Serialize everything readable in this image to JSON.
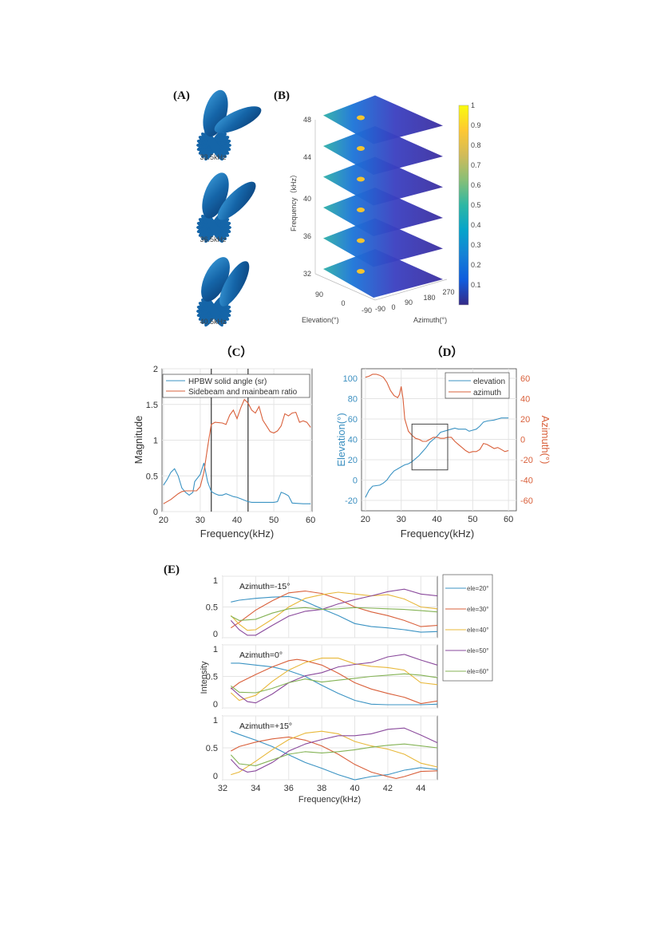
{
  "panels": {
    "A": {
      "label": "(A)",
      "freq_labels": [
        "33.5kHz",
        "36.5kHz",
        "40.5kHz"
      ]
    },
    "B": {
      "label": "(B)",
      "zlabel": "Frequency（kHz）",
      "z_ticks": [
        "32",
        "36",
        "40",
        "44",
        "48"
      ],
      "elevation_label": "Elevation(°)",
      "elevation_ticks": [
        "90",
        "0",
        "-90"
      ],
      "azimuth_label": "Azimuth(°)",
      "azimuth_ticks": [
        "-90",
        "0",
        "90",
        "180",
        "270"
      ],
      "colorbar_ticks": [
        "1",
        "0.9",
        "0.8",
        "0.7",
        "0.6",
        "0.5",
        "0.4",
        "0.3",
        "0.2",
        "0.1"
      ],
      "colormap": [
        "#352a87",
        "#0f5cdd",
        "#1481d6",
        "#06a4ca",
        "#2eb7a4",
        "#87bf77",
        "#d1bb59",
        "#fec832",
        "#f9fb0e"
      ]
    },
    "C": {
      "label": "（C）"
    },
    "D": {
      "label": "（D）"
    },
    "E": {
      "label": "(E)"
    }
  },
  "chart_data": [
    {
      "id": "C",
      "type": "line",
      "xlabel": "Frequency(kHz)",
      "ylabel": "Magnitude",
      "xlim": [
        20,
        60
      ],
      "ylim": [
        0,
        2
      ],
      "xticks": [
        20,
        30,
        40,
        50,
        60
      ],
      "yticks": [
        0,
        0.5,
        1,
        1.5,
        2
      ],
      "grid": true,
      "legend": "top",
      "vertical_lines": [
        33,
        43
      ],
      "series": [
        {
          "name": "HPBW solid angle (sr)",
          "color": "#3b93c3",
          "x": [
            20,
            21,
            22,
            23,
            24,
            25,
            26,
            27,
            28,
            28.5,
            30,
            31,
            32,
            33,
            34,
            35,
            36,
            37,
            38,
            39,
            40,
            41,
            42,
            43,
            44,
            46,
            48,
            50,
            51,
            52,
            53,
            54,
            55,
            58,
            60
          ],
          "y": [
            0.37,
            0.45,
            0.55,
            0.6,
            0.5,
            0.33,
            0.27,
            0.23,
            0.27,
            0.42,
            0.52,
            0.68,
            0.42,
            0.28,
            0.25,
            0.23,
            0.23,
            0.25,
            0.23,
            0.21,
            0.2,
            0.18,
            0.16,
            0.14,
            0.13,
            0.13,
            0.13,
            0.13,
            0.14,
            0.27,
            0.25,
            0.22,
            0.12,
            0.11,
            0.11
          ]
        },
        {
          "name": "Sidebeam and mainbeam ratio",
          "color": "#d9603b",
          "x": [
            20,
            22,
            24,
            25,
            26,
            28,
            29,
            30,
            31,
            32,
            33,
            34,
            36,
            37,
            38,
            39,
            40,
            41,
            42,
            43,
            44,
            45,
            46,
            47,
            48,
            49,
            50,
            51,
            52,
            53,
            54,
            55,
            56,
            57,
            58,
            59,
            60
          ],
          "y": [
            0.11,
            0.17,
            0.25,
            0.28,
            0.29,
            0.29,
            0.29,
            0.35,
            0.55,
            0.9,
            1.22,
            1.25,
            1.24,
            1.22,
            1.35,
            1.42,
            1.3,
            1.45,
            1.57,
            1.52,
            1.42,
            1.38,
            1.47,
            1.28,
            1.2,
            1.12,
            1.1,
            1.13,
            1.2,
            1.37,
            1.34,
            1.38,
            1.39,
            1.25,
            1.27,
            1.25,
            1.18
          ]
        }
      ]
    },
    {
      "id": "D",
      "type": "line",
      "xlabel": "Frequency(kHz)",
      "ylabel": "Elevation(°)",
      "ylabel_right": "Azimuth(°)",
      "xlim": [
        20,
        60
      ],
      "ylim": [
        -30,
        110
      ],
      "ylim_right": [
        -70,
        70
      ],
      "xticks": [
        20,
        30,
        40,
        50,
        60
      ],
      "yticks": [
        -20,
        0,
        20,
        40,
        60,
        80,
        100
      ],
      "yticks_right": [
        -60,
        -40,
        -20,
        0,
        20,
        40,
        60
      ],
      "grid": true,
      "legend": "top-right",
      "box": {
        "x": [
          33,
          43
        ],
        "elevation": [
          10,
          55
        ]
      },
      "series": [
        {
          "name": "elevation",
          "axis": "left",
          "color": "#3b93c3",
          "x": [
            20,
            21,
            22,
            24,
            25,
            26,
            27,
            28,
            29,
            30,
            31,
            32,
            33,
            34,
            35,
            36,
            37,
            38,
            39,
            40,
            41,
            42,
            43,
            44,
            45,
            46,
            48,
            49,
            50,
            51,
            52,
            53,
            54,
            56,
            57,
            58,
            60
          ],
          "y": [
            -17,
            -10,
            -6,
            -5,
            -3,
            0,
            5,
            9,
            11,
            13,
            15,
            16,
            18,
            21,
            24,
            28,
            32,
            37,
            40,
            43,
            47,
            48,
            49,
            50,
            51,
            50,
            50,
            48,
            49,
            50,
            53,
            57,
            58,
            59,
            60,
            61,
            61
          ]
        },
        {
          "name": "azimuth",
          "axis": "right",
          "color": "#d9603b",
          "x": [
            20,
            21,
            22,
            23,
            24,
            25,
            26,
            27,
            28,
            29,
            29.5,
            30,
            30.5,
            31,
            32,
            33,
            34,
            35,
            36,
            37,
            38,
            39,
            40,
            41,
            42,
            43,
            44,
            45,
            46,
            47,
            48,
            49,
            50,
            51,
            52,
            53,
            54,
            55,
            56,
            57,
            58,
            59,
            60
          ],
          "y": [
            61,
            62,
            64,
            64,
            63,
            61,
            56,
            48,
            43,
            41,
            44,
            52,
            40,
            20,
            8,
            4,
            1,
            0,
            -2,
            -2,
            0,
            2,
            2,
            1,
            1,
            2,
            2,
            -2,
            -5,
            -8,
            -11,
            -13,
            -12,
            -12,
            -10,
            -4,
            -5,
            -7,
            -9,
            -8,
            -10,
            -12,
            -11
          ]
        }
      ]
    },
    {
      "id": "E",
      "type": "line",
      "xlabel": "Frequency(kHz)",
      "ylabel": "Intensity",
      "xlim": [
        32,
        45
      ],
      "ylim": [
        0,
        1
      ],
      "xticks": [
        32,
        34,
        36,
        38,
        40,
        42,
        44
      ],
      "yticks": [
        0,
        0.5,
        1
      ],
      "grid": true,
      "legend": "right",
      "legend_entries": [
        "ele=20°",
        "ele=30°",
        "ele=40°",
        "ele=50°",
        "ele=60°"
      ],
      "colors": [
        "#3b93c3",
        "#d9603b",
        "#e8b83a",
        "#8a4a9c",
        "#84b355"
      ],
      "subplots": [
        {
          "title": "Azimuth=-15°",
          "series": [
            {
              "x": [
                32.5,
                33,
                34,
                35,
                36,
                36.5,
                37,
                38,
                39,
                40,
                41,
                42,
                43,
                44,
                45
              ],
              "y": [
                0.58,
                0.61,
                0.64,
                0.66,
                0.67,
                0.64,
                0.59,
                0.47,
                0.36,
                0.23,
                0.18,
                0.16,
                0.13,
                0.09,
                0.1
              ]
            },
            {
              "x": [
                32.5,
                33,
                34,
                35,
                36,
                37,
                38,
                39,
                40,
                41,
                42,
                43,
                44,
                45
              ],
              "y": [
                0.16,
                0.25,
                0.45,
                0.6,
                0.73,
                0.76,
                0.72,
                0.63,
                0.5,
                0.42,
                0.36,
                0.28,
                0.18,
                0.2
              ]
            },
            {
              "x": [
                32.5,
                33,
                33.5,
                34,
                35,
                36,
                37,
                38,
                39,
                40,
                41,
                42,
                43,
                44,
                45
              ],
              "y": [
                0.36,
                0.22,
                0.12,
                0.13,
                0.3,
                0.5,
                0.64,
                0.7,
                0.74,
                0.71,
                0.68,
                0.7,
                0.63,
                0.5,
                0.47
              ]
            },
            {
              "x": [
                32.5,
                33,
                33.5,
                34,
                35,
                36,
                37,
                38,
                39,
                40,
                41,
                42,
                43,
                44,
                45
              ],
              "y": [
                0.28,
                0.13,
                0.04,
                0.04,
                0.2,
                0.35,
                0.43,
                0.46,
                0.55,
                0.62,
                0.68,
                0.75,
                0.79,
                0.71,
                0.68
              ]
            },
            {
              "x": [
                32.5,
                33,
                34,
                35,
                36,
                37,
                38,
                39,
                40,
                41,
                42,
                43,
                44,
                45
              ],
              "y": [
                0.35,
                0.28,
                0.3,
                0.4,
                0.47,
                0.49,
                0.46,
                0.47,
                0.49,
                0.48,
                0.47,
                0.46,
                0.44,
                0.42
              ]
            }
          ]
        },
        {
          "title": "Azimuth=0°",
          "series": [
            {
              "x": [
                32.5,
                33,
                34,
                35,
                36,
                37,
                38,
                39,
                40,
                41,
                42,
                43,
                44,
                45
              ],
              "y": [
                0.71,
                0.71,
                0.68,
                0.65,
                0.59,
                0.5,
                0.36,
                0.23,
                0.12,
                0.06,
                0.05,
                0.05,
                0.05,
                0.06
              ]
            },
            {
              "x": [
                32.5,
                33,
                34,
                35,
                36,
                36.5,
                37,
                38,
                39,
                40,
                41,
                42,
                43,
                44,
                45
              ],
              "y": [
                0.3,
                0.4,
                0.53,
                0.65,
                0.75,
                0.77,
                0.75,
                0.68,
                0.55,
                0.4,
                0.3,
                0.23,
                0.17,
                0.07,
                0.11
              ]
            },
            {
              "x": [
                32.5,
                33,
                34,
                35,
                36,
                37,
                38,
                39,
                40,
                41,
                42,
                43,
                44,
                45
              ],
              "y": [
                0.24,
                0.12,
                0.2,
                0.42,
                0.6,
                0.72,
                0.79,
                0.79,
                0.7,
                0.66,
                0.64,
                0.6,
                0.4,
                0.37
              ]
            },
            {
              "x": [
                32.5,
                33,
                33.5,
                34,
                35,
                36,
                37,
                38,
                39,
                40,
                41,
                42,
                43,
                44,
                45
              ],
              "y": [
                0.32,
                0.2,
                0.1,
                0.08,
                0.22,
                0.4,
                0.51,
                0.56,
                0.65,
                0.69,
                0.72,
                0.81,
                0.85,
                0.76,
                0.68
              ]
            },
            {
              "x": [
                32.5,
                33,
                34,
                35,
                36,
                37,
                38,
                39,
                40,
                41,
                42,
                43,
                44,
                45
              ],
              "y": [
                0.35,
                0.25,
                0.24,
                0.31,
                0.4,
                0.46,
                0.41,
                0.44,
                0.47,
                0.5,
                0.52,
                0.54,
                0.52,
                0.48
              ]
            }
          ]
        },
        {
          "title": "Azimuth=+15°",
          "series": [
            {
              "x": [
                32.5,
                33,
                34,
                35,
                36,
                37,
                38,
                39,
                40,
                41,
                42,
                43,
                44,
                45
              ],
              "y": [
                0.76,
                0.71,
                0.62,
                0.52,
                0.39,
                0.27,
                0.18,
                0.08,
                0.0,
                0.05,
                0.08,
                0.15,
                0.19,
                0.16
              ]
            },
            {
              "x": [
                32.5,
                33,
                34,
                35,
                36,
                37,
                38,
                39,
                40,
                41,
                42,
                42.5,
                43,
                44,
                45
              ],
              "y": [
                0.45,
                0.52,
                0.59,
                0.64,
                0.67,
                0.62,
                0.53,
                0.4,
                0.24,
                0.12,
                0.05,
                0.02,
                0.05,
                0.13,
                0.14
              ]
            },
            {
              "x": [
                32.5,
                33,
                34,
                35,
                36,
                37,
                38,
                39,
                40,
                41,
                42,
                43,
                44,
                45
              ],
              "y": [
                0.08,
                0.12,
                0.29,
                0.47,
                0.63,
                0.73,
                0.76,
                0.72,
                0.6,
                0.53,
                0.48,
                0.4,
                0.26,
                0.2
              ]
            },
            {
              "x": [
                32.5,
                33,
                33.5,
                34,
                35,
                36,
                37,
                38,
                39,
                40,
                41,
                42,
                43,
                44,
                45
              ],
              "y": [
                0.32,
                0.18,
                0.12,
                0.14,
                0.27,
                0.45,
                0.56,
                0.63,
                0.69,
                0.69,
                0.72,
                0.79,
                0.81,
                0.7,
                0.58
              ]
            },
            {
              "x": [
                32.5,
                33,
                34,
                35,
                36,
                37,
                38,
                39,
                40,
                41,
                42,
                43,
                44,
                45
              ],
              "y": [
                0.39,
                0.25,
                0.22,
                0.31,
                0.4,
                0.44,
                0.42,
                0.44,
                0.47,
                0.51,
                0.54,
                0.56,
                0.53,
                0.5
              ]
            }
          ]
        }
      ]
    }
  ]
}
